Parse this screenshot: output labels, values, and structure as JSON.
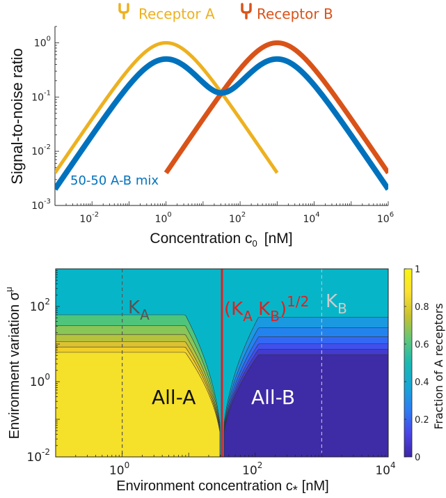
{
  "chart_data": [
    {
      "type": "line",
      "xscale": "log",
      "yscale": "log",
      "xlim": [
        0.001,
        1000000
      ],
      "ylim": [
        0.001,
        2
      ],
      "xlabel": "Concentration c",
      "xlabel_sub": "0",
      "xlabel_unit": "[nM]",
      "ylabel": "Signal-to-noise ratio",
      "x_ticks": [
        {
          "value": 0.01,
          "base": "10",
          "exp": "-2"
        },
        {
          "value": 1,
          "base": "10",
          "exp": "0"
        },
        {
          "value": 100,
          "base": "10",
          "exp": "2"
        },
        {
          "value": 10000,
          "base": "10",
          "exp": "4"
        },
        {
          "value": 1000000,
          "base": "10",
          "exp": "6"
        }
      ],
      "y_ticks": [
        {
          "value": 0.001,
          "base": "10",
          "exp": "-3"
        },
        {
          "value": 0.01,
          "base": "10",
          "exp": "-2"
        },
        {
          "value": 0.1,
          "base": "10",
          "exp": "-1"
        },
        {
          "value": 1,
          "base": "10",
          "exp": "0"
        }
      ],
      "legend_placement": "top",
      "series": [
        {
          "name": "Receptor A",
          "color": "#EDB120",
          "icon": "receptor-icon",
          "K": 1,
          "peak": 2,
          "x_range": [
            0.001,
            1000
          ]
        },
        {
          "name": "Receptor B",
          "color": "#D95319",
          "icon": "receptor-icon",
          "K": 1000,
          "peak": 2,
          "x_range": [
            1,
            1000000
          ]
        },
        {
          "name": "50-50 A-B mix",
          "color": "#0072BD",
          "K": [
            1,
            1000
          ],
          "peak": 1,
          "x_range": [
            0.001,
            1000000
          ]
        }
      ]
    },
    {
      "type": "heatmap",
      "xscale": "log",
      "yscale": "log",
      "xlim": [
        0.1,
        10000
      ],
      "ylim": [
        0.01,
        1000
      ],
      "xlabel": "Environment concentration c",
      "xlabel_sub": "*",
      "xlabel_unit": "[nM]",
      "ylabel": "Environment variation σ",
      "ylabel_sub": "μ",
      "x_ticks": [
        {
          "value": 1,
          "base": "10",
          "exp": "0"
        },
        {
          "value": 100,
          "base": "10",
          "exp": "2"
        },
        {
          "value": 10000,
          "base": "10",
          "exp": "4"
        }
      ],
      "y_ticks": [
        {
          "value": 0.01,
          "base": "10",
          "exp": "-2"
        },
        {
          "value": 1,
          "base": "10",
          "exp": "0"
        },
        {
          "value": 100,
          "base": "10",
          "exp": "2"
        }
      ],
      "colorbar": {
        "label": "Fraction of A receptors",
        "range": [
          0,
          1
        ],
        "ticks": [
          "0",
          "0.2",
          "0.4",
          "0.6",
          "0.8",
          "1"
        ],
        "colormap": [
          "#3E26A8",
          "#4A45E6",
          "#2D7DF4",
          "#16A6D6",
          "#1BB9B2",
          "#60C67A",
          "#C8C22F",
          "#FCE030",
          "#F9F50F"
        ]
      },
      "colors": {
        "all_a": "#F5E02A",
        "all_b": "#3E2BA6",
        "mixed": "#06B6C8",
        "sqrt_line": "#E02020"
      },
      "regions": {
        "all_a": "All-A",
        "all_b": "All-B"
      },
      "annotations": [
        {
          "id": "ka",
          "letter": "K",
          "sub": "A",
          "x": 1,
          "color": "#555555"
        },
        {
          "id": "kb",
          "letter": "K",
          "sub": "B",
          "x": 1000,
          "color": "#CCCCCC"
        },
        {
          "id": "geo",
          "open": "(K",
          "sub1": "A",
          "mid": " K",
          "sub2": "B",
          "close": ")",
          "sup": "1/2",
          "x": 31.6,
          "color": "#E02020"
        }
      ]
    }
  ]
}
